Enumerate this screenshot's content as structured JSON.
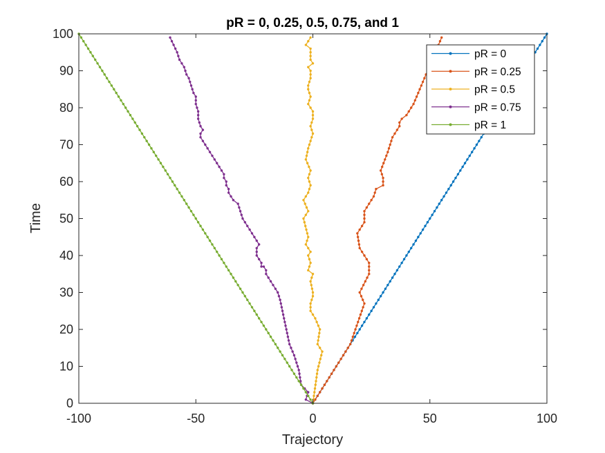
{
  "chart_data": {
    "type": "line",
    "title": "pR = 0, 0.25, 0.5, 0.75, and 1",
    "xlabel": "Trajectory",
    "ylabel": "Time",
    "xlim": [
      -100,
      100
    ],
    "ylim": [
      0,
      100
    ],
    "xticks": [
      -100,
      -50,
      0,
      50,
      100
    ],
    "yticks": [
      0,
      10,
      20,
      30,
      40,
      50,
      60,
      70,
      80,
      90,
      100
    ],
    "legend_location": "top-right",
    "grid": false,
    "markers": "dot",
    "series": [
      {
        "name": "pR = 0",
        "color": "#0072BD",
        "x": [
          0,
          100
        ],
        "y": [
          0,
          100
        ]
      },
      {
        "name": "pR = 0.25",
        "color": "#D95319",
        "x": [
          0,
          16,
          22,
          20,
          24,
          24,
          20,
          19,
          22,
          22,
          26,
          27,
          30,
          30,
          29,
          32,
          34,
          37,
          37,
          38,
          40,
          43,
          47,
          53,
          55
        ],
        "y": [
          0,
          16,
          27,
          30,
          35,
          38,
          42,
          46,
          49,
          52,
          56,
          58,
          59,
          61,
          63,
          68,
          72,
          75,
          76,
          77,
          78,
          81,
          87,
          96,
          99
        ]
      },
      {
        "name": "pR = 0.5",
        "color": "#EDB120",
        "x": [
          0,
          2,
          4,
          2,
          3,
          1,
          -1,
          -1,
          0,
          0,
          -1,
          0,
          -2,
          -1,
          -2,
          -1,
          -3,
          -2,
          -4,
          -2,
          -4,
          -2,
          -1,
          -2,
          -1,
          -3,
          -2,
          -1,
          0,
          -1,
          0,
          0,
          -2,
          -1,
          -2,
          -2,
          -1,
          -1,
          -2,
          0,
          -1,
          -1,
          -1,
          -3,
          -2,
          -1
        ],
        "y": [
          0,
          9,
          14,
          16,
          20,
          23,
          25,
          27,
          29,
          30,
          33,
          35,
          36,
          38,
          40,
          41,
          43,
          45,
          50,
          52,
          55,
          57,
          59,
          61,
          63,
          66,
          69,
          71,
          73,
          75,
          77,
          79,
          81,
          83,
          85,
          86,
          88,
          90,
          91,
          92,
          93,
          95,
          96,
          97,
          98,
          99
        ]
      },
      {
        "name": "pR = 0.75",
        "color": "#7E2F8E",
        "x": [
          0,
          -3,
          -2,
          -5,
          -6,
          -8,
          -10,
          -11,
          -12,
          -13,
          -14,
          -15,
          -16,
          -17,
          -18,
          -19,
          -20,
          -20,
          -21,
          -22,
          -22,
          -23,
          -24,
          -24,
          -24,
          -23,
          -24,
          -25,
          -26,
          -28,
          -30,
          -31,
          -32,
          -34,
          -35,
          -36,
          -36,
          -37,
          -37,
          -38,
          -38,
          -40,
          -41,
          -42,
          -44,
          -45,
          -46,
          -47,
          -48,
          -48,
          -47,
          -48,
          -49,
          -49,
          -50,
          -50,
          -51,
          -52,
          -53,
          -54,
          -55,
          -57,
          -58,
          -61
        ],
        "y": [
          0,
          1,
          3,
          5,
          9,
          13,
          16,
          19,
          22,
          25,
          28,
          30,
          31,
          32,
          33,
          34,
          35,
          36,
          37,
          37,
          38,
          39,
          40,
          41,
          42,
          43,
          44,
          45,
          46,
          48,
          50,
          52,
          54,
          55,
          56,
          57,
          58,
          59,
          60,
          61,
          62,
          64,
          65,
          66,
          68,
          69,
          70,
          71,
          72,
          73,
          74,
          75,
          77,
          79,
          81,
          83,
          84,
          86,
          88,
          89,
          91,
          93,
          95,
          99
        ]
      },
      {
        "name": "pR = 1",
        "color": "#77AC30",
        "x": [
          0,
          -100
        ],
        "y": [
          0,
          100
        ]
      }
    ]
  }
}
